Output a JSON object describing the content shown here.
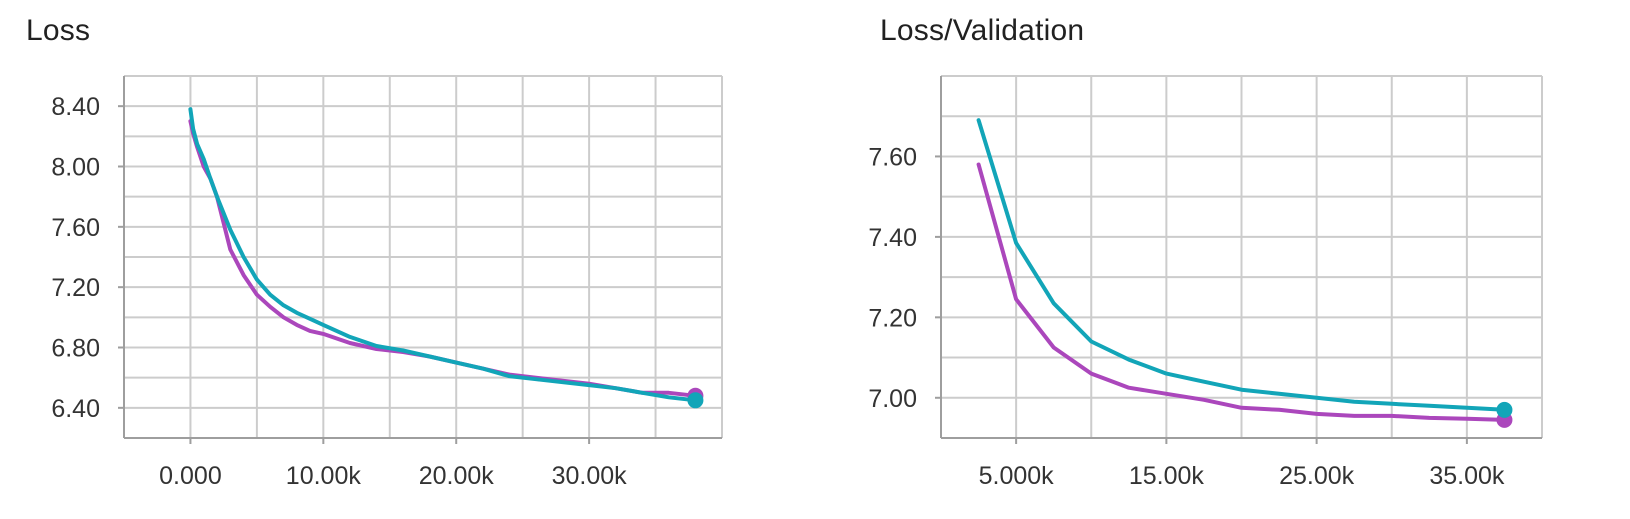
{
  "colors": {
    "purple": "#ab47bc",
    "teal": "#12a5b8",
    "grid": "#cccccc",
    "axis": "#9e9e9e"
  },
  "chart_data": [
    {
      "type": "line",
      "title": "Loss",
      "xlabel": "",
      "ylabel": "",
      "xlim": [
        -5000,
        40000
      ],
      "ylim": [
        6.2,
        8.6
      ],
      "x_ticks": [
        0,
        10000,
        20000,
        30000
      ],
      "x_tick_labels": [
        "0.000",
        "10.00k",
        "20.00k",
        "30.00k"
      ],
      "y_ticks": [
        6.4,
        6.8,
        7.2,
        7.6,
        8.0,
        8.4
      ],
      "y_tick_labels": [
        "6.40",
        "6.80",
        "7.20",
        "7.60",
        "8.00",
        "8.40"
      ],
      "grid": true,
      "legend": "none",
      "series": [
        {
          "color": "#ab47bc",
          "x": [
            0,
            200,
            500,
            1000,
            1500,
            2000,
            3000,
            4000,
            5000,
            6000,
            7000,
            8000,
            9000,
            10000,
            12000,
            14000,
            16000,
            18000,
            20000,
            22000,
            24000,
            26000,
            28000,
            30000,
            32000,
            34000,
            36000,
            38000
          ],
          "y": [
            8.3,
            8.22,
            8.13,
            8.0,
            7.92,
            7.8,
            7.45,
            7.28,
            7.15,
            7.07,
            7.0,
            6.95,
            6.91,
            6.89,
            6.83,
            6.79,
            6.77,
            6.74,
            6.7,
            6.66,
            6.62,
            6.6,
            6.58,
            6.56,
            6.53,
            6.5,
            6.5,
            6.48
          ]
        },
        {
          "color": "#12a5b8",
          "x": [
            0,
            200,
            500,
            1000,
            1500,
            2000,
            3000,
            4000,
            5000,
            6000,
            7000,
            8000,
            9000,
            10000,
            12000,
            14000,
            16000,
            18000,
            20000,
            22000,
            24000,
            26000,
            28000,
            30000,
            32000,
            34000,
            36000,
            38000
          ],
          "y": [
            8.38,
            8.25,
            8.15,
            8.05,
            7.92,
            7.8,
            7.58,
            7.4,
            7.25,
            7.15,
            7.08,
            7.03,
            6.99,
            6.95,
            6.87,
            6.81,
            6.78,
            6.74,
            6.7,
            6.66,
            6.61,
            6.59,
            6.57,
            6.55,
            6.53,
            6.5,
            6.47,
            6.45
          ]
        }
      ]
    },
    {
      "type": "line",
      "title": "Loss/Validation",
      "xlabel": "",
      "ylabel": "",
      "xlim": [
        0,
        40000
      ],
      "ylim": [
        6.9,
        7.8
      ],
      "x_ticks": [
        5000,
        15000,
        25000,
        35000
      ],
      "x_tick_labels": [
        "5.000k",
        "15.00k",
        "25.00k",
        "35.00k"
      ],
      "y_ticks": [
        7.0,
        7.2,
        7.4,
        7.6
      ],
      "y_tick_labels": [
        "7.00",
        "7.20",
        "7.40",
        "7.60"
      ],
      "grid": true,
      "legend": "none",
      "series": [
        {
          "color": "#ab47bc",
          "x": [
            2500,
            5000,
            7500,
            10000,
            12500,
            15000,
            17500,
            20000,
            22500,
            25000,
            27500,
            30000,
            32500,
            35000,
            37500
          ],
          "y": [
            7.58,
            7.245,
            7.125,
            7.06,
            7.025,
            7.01,
            6.995,
            6.975,
            6.97,
            6.96,
            6.955,
            6.955,
            6.95,
            6.948,
            6.945
          ]
        },
        {
          "color": "#12a5b8",
          "x": [
            2500,
            5000,
            7500,
            10000,
            12500,
            15000,
            17500,
            20000,
            22500,
            25000,
            27500,
            30000,
            32500,
            35000,
            37500
          ],
          "y": [
            7.69,
            7.385,
            7.235,
            7.14,
            7.095,
            7.06,
            7.04,
            7.02,
            7.01,
            7.0,
            6.99,
            6.985,
            6.98,
            6.975,
            6.97
          ]
        }
      ]
    }
  ]
}
